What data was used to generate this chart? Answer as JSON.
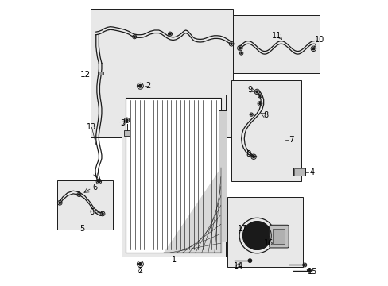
{
  "bg_color": "#ffffff",
  "box_color": "#e8e8e8",
  "line_color": "#1a1a1a",
  "fig_width": 4.89,
  "fig_height": 3.6,
  "dpi": 100,
  "boxes": {
    "hose12": [
      0.135,
      0.52,
      0.5,
      0.45
    ],
    "condenser": [
      0.245,
      0.1,
      0.365,
      0.57
    ],
    "hose5": [
      0.018,
      0.195,
      0.195,
      0.175
    ],
    "hose10": [
      0.635,
      0.745,
      0.305,
      0.205
    ],
    "hose7": [
      0.63,
      0.365,
      0.245,
      0.355
    ],
    "compressor": [
      0.615,
      0.065,
      0.265,
      0.245
    ]
  }
}
